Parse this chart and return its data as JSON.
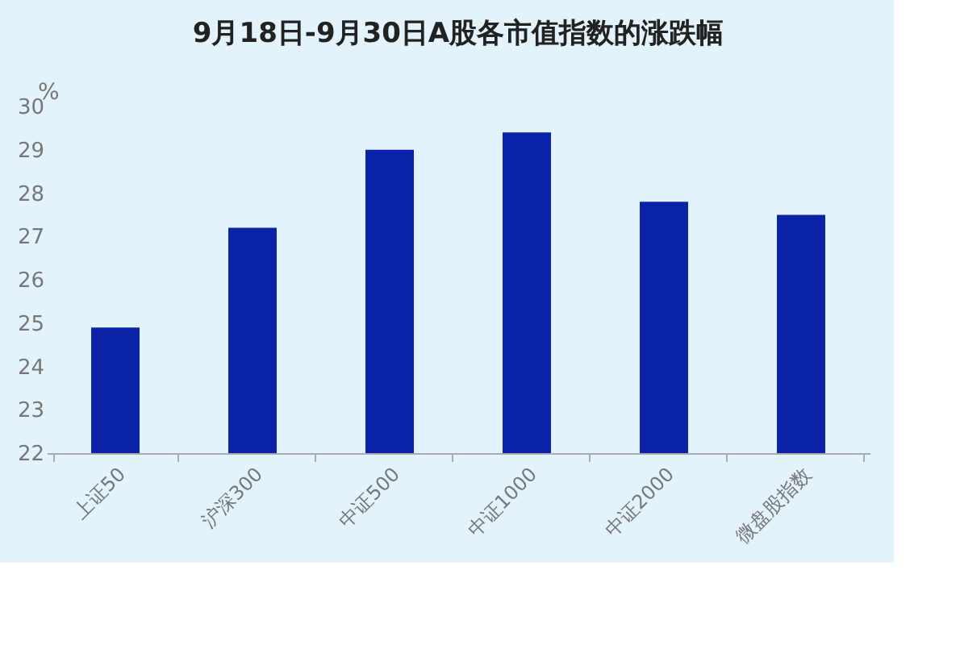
{
  "chart_data": {
    "type": "bar",
    "title": "9月18日-9月30日A股各市值指数的涨跌幅",
    "ylabel": "%",
    "categories": [
      "上证50",
      "沪深300",
      "中证500",
      "中证1000",
      "中证2000",
      "微盘股指数"
    ],
    "values": [
      24.9,
      27.2,
      29.0,
      29.4,
      27.8,
      27.5
    ],
    "color": "#0a22a8",
    "ylim": [
      22,
      30
    ],
    "yticks": [
      22,
      23,
      24,
      25,
      26,
      27,
      28,
      29,
      30
    ],
    "grid": false
  }
}
